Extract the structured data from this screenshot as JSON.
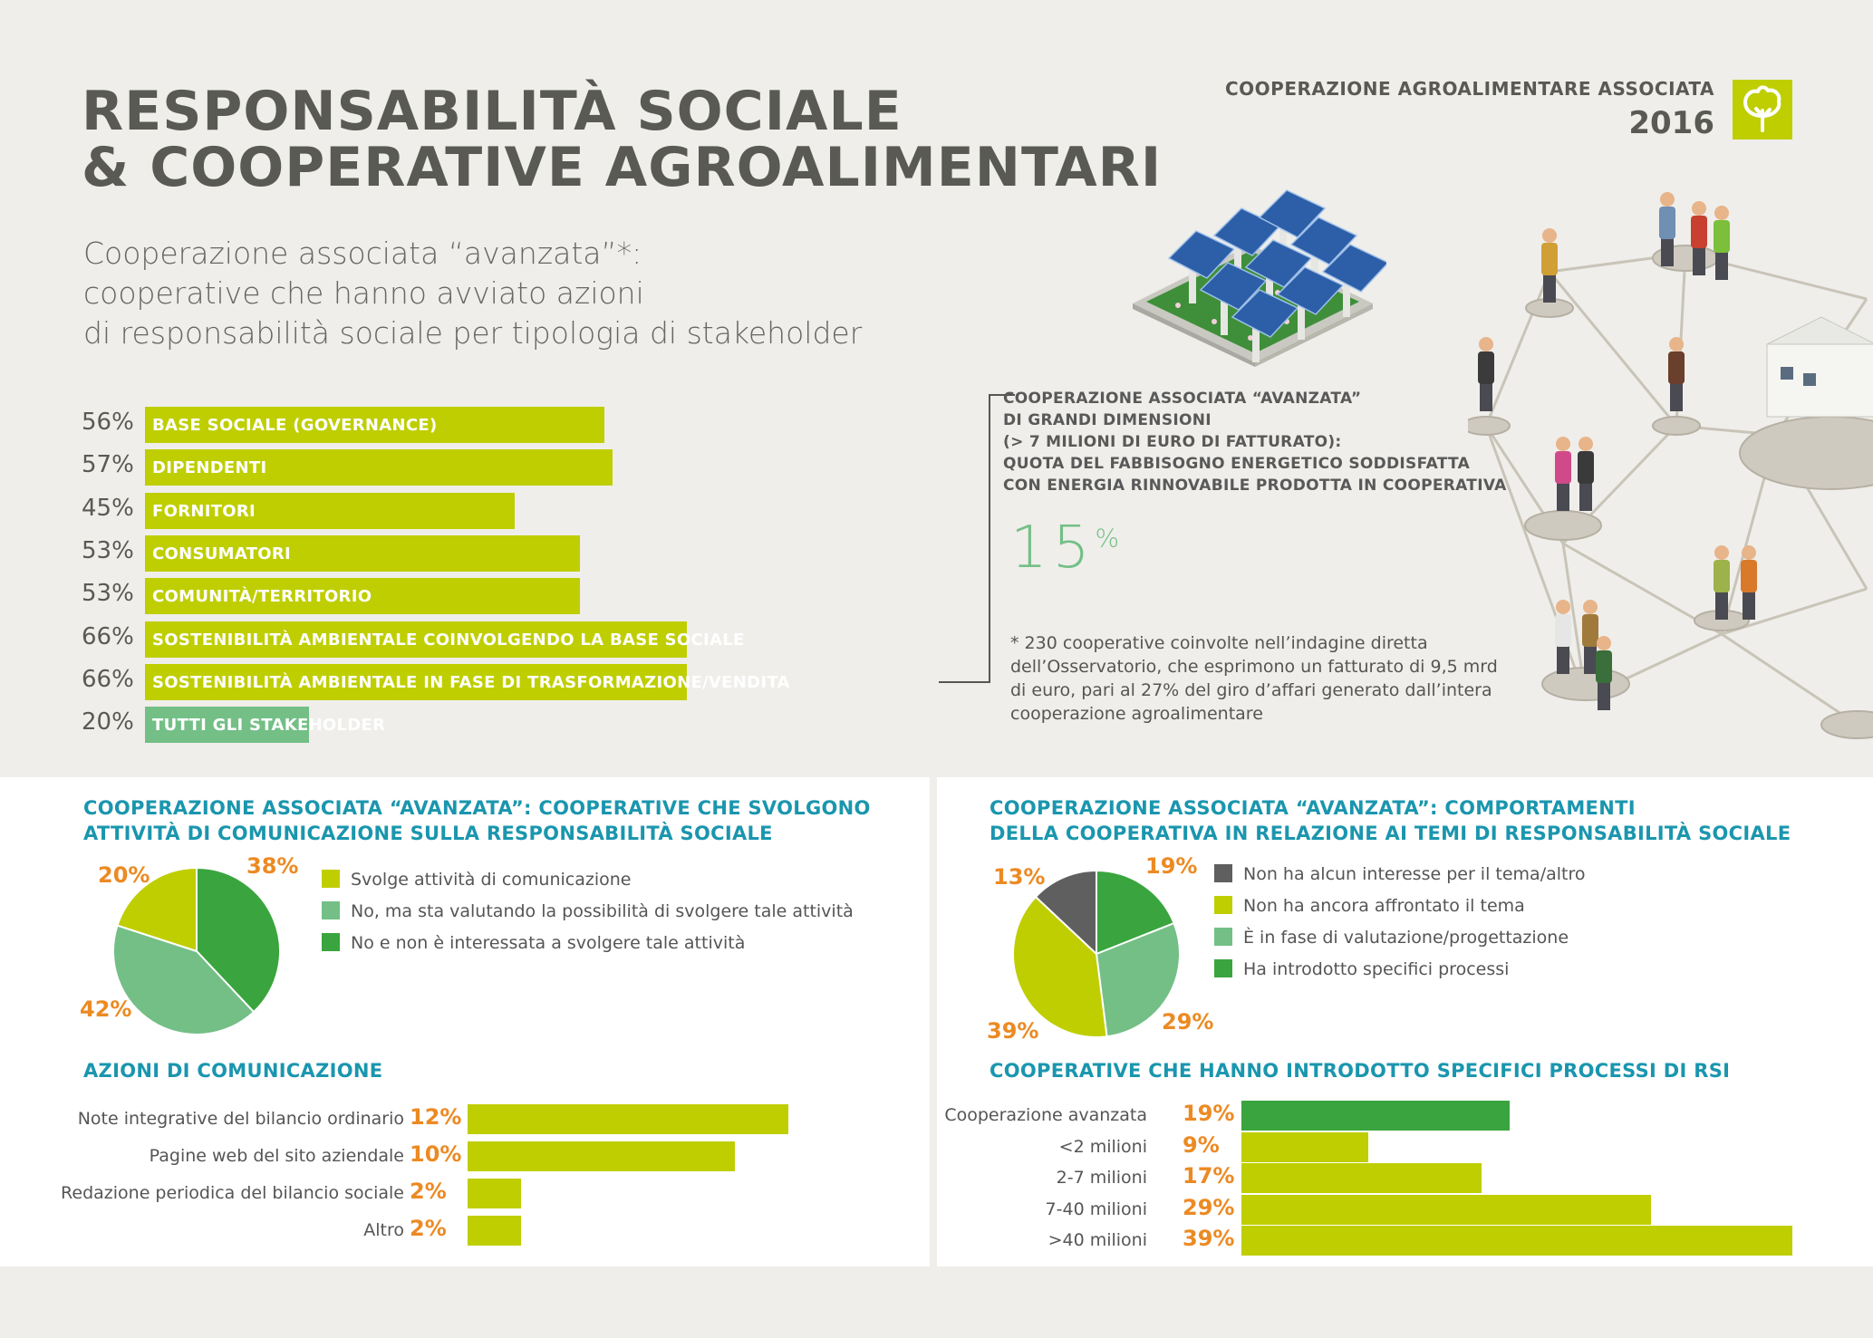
{
  "header": {
    "title_line1": "RESPONSABILITÀ SOCIALE",
    "title_line2": "& COOPERATIVE AGROALIMENTARI",
    "org_name": "COOPERAZIONE AGROALIMENTARE ASSOCIATA",
    "year": "2016",
    "logo_icon": "tree-logo-icon"
  },
  "subtitle": {
    "line1": "Cooperazione associata “avanzata”*:",
    "line2": "cooperative che hanno avviato azioni",
    "line3": "di responsabilità sociale per tipologia di stakeholder"
  },
  "stakeholder_chart": {
    "rows": [
      {
        "pct": "56%",
        "label": "BASE SOCIALE (GOVERNANCE)"
      },
      {
        "pct": "57%",
        "label": "DIPENDENTI"
      },
      {
        "pct": "45%",
        "label": "FORNITORI"
      },
      {
        "pct": "53%",
        "label": "CONSUMATORI"
      },
      {
        "pct": "53%",
        "label": "COMUNITÀ/TERRITORIO"
      },
      {
        "pct": "66%",
        "label": "SOSTENIBILITÀ AMBIENTALE COINVOLGENDO LA BASE SOCIALE"
      },
      {
        "pct": "66%",
        "label": "SOSTENIBILITÀ AMBIENTALE IN FASE DI TRASFORMAZIONE/VENDITA"
      },
      {
        "pct": "20%",
        "label": "TUTTI GLI STAKEHOLDER"
      }
    ]
  },
  "callout": {
    "line1": "COOPERAZIONE ASSOCIATA “AVANZATA”",
    "line2": "DI GRANDI DIMENSIONI",
    "line3": "(> 7 MILIONI DI EURO DI FATTURATO):",
    "line4": "QUOTA DEL FABBISOGNO ENERGETICO SODDISFATTA",
    "line5": "CON ENERGIA RINNOVABILE PRODOTTA IN COOPERATIVA",
    "value": "15",
    "unit": "%"
  },
  "footnote": {
    "line1": "* 230 cooperative coinvolte nell’indagine diretta",
    "line2": "dell’Osservatorio, che esprimono un fatturato di 9,5 mrd",
    "line3": "di euro, pari al 27% del giro d’affari generato dall’intera",
    "line4": "cooperazione agroalimentare"
  },
  "panel_left": {
    "title_line1": "COOPERAZIONE ASSOCIATA “AVANZATA”: COOPERATIVE CHE SVOLGONO",
    "title_line2": "ATTIVITÀ DI COMUNICAZIONE SULLA RESPONSABILITÀ SOCIALE",
    "legend": [
      "Svolge attività di comunicazione",
      "No, ma sta valutando la possibilità di svolgere tale attività",
      "No e non è interessata a svolgere tale attività"
    ],
    "pie_labels": [
      "20%",
      "42%",
      "38%"
    ],
    "sub_title": "AZIONI DI COMUNICAZIONE",
    "actions": [
      {
        "label": "Note integrative del bilancio ordinario",
        "pct": "12%"
      },
      {
        "label": "Pagine web del sito aziendale",
        "pct": "10%"
      },
      {
        "label": "Redazione periodica del bilancio sociale",
        "pct": "2%"
      },
      {
        "label": "Altro",
        "pct": "2%"
      }
    ]
  },
  "panel_right": {
    "title_line1": "COOPERAZIONE ASSOCIATA “AVANZATA”: COMPORTAMENTI",
    "title_line2": "DELLA COOPERATIVA IN RELAZIONE AI TEMI DI RESPONSABILITÀ SOCIALE",
    "legend": [
      "Non ha alcun interesse per il tema/altro",
      "Non ha ancora affrontato il tema",
      "È in fase di valutazione/progettazione",
      "Ha introdotto specifici processi"
    ],
    "pie_labels": [
      "13%",
      "39%",
      "29%",
      "19%"
    ],
    "sub_title": "COOPERATIVE CHE HANNO INTRODOTTO SPECIFICI PROCESSI DI RSI",
    "rsi": [
      {
        "label": "Cooperazione avanzata",
        "pct": "19%"
      },
      {
        "label": "<2 milioni",
        "pct": "9%"
      },
      {
        "label": "2-7 milioni",
        "pct": "17%"
      },
      {
        "label": "7-40 milioni",
        "pct": "29%"
      },
      {
        "label": ">40 milioni",
        "pct": "39%"
      }
    ]
  },
  "colors": {
    "lime": "#bfce00",
    "light_green": "#73bf86",
    "dark_green": "#3aa53e",
    "grey": "#5f5f5f",
    "orange": "#ec8a23",
    "teal": "#1a96ae"
  },
  "chart_data": [
    {
      "type": "bar",
      "orientation": "horizontal",
      "categories": [
        "BASE SOCIALE (GOVERNANCE)",
        "DIPENDENTI",
        "FORNITORI",
        "CONSUMATORI",
        "COMUNITÀ/TERRITORIO",
        "SOSTENIBILITÀ AMBIENTALE COINVOLGENDO LA BASE SOCIALE",
        "SOSTENIBILITÀ AMBIENTALE IN FASE DI TRASFORMAZIONE/VENDITA",
        "TUTTI GLI STAKEHOLDER"
      ],
      "values": [
        56,
        57,
        45,
        53,
        53,
        66,
        66,
        20
      ]
    },
    {
      "type": "pie",
      "title": "COOPERAZIONE ASSOCIATA “AVANZATA”: COOPERATIVE CHE SVOLGONO ATTIVITÀ DI COMUNICAZIONE SULLA RESPONSABILITÀ SOCIALE",
      "categories": [
        "Svolge attività di comunicazione",
        "No, ma sta valutando la possibilità di svolgere tale attività",
        "No e non è interessata a svolgere tale attività"
      ],
      "values": [
        20,
        42,
        38
      ]
    },
    {
      "type": "bar",
      "orientation": "horizontal",
      "title": "AZIONI DI COMUNICAZIONE",
      "categories": [
        "Note integrative del bilancio ordinario",
        "Pagine web del sito aziendale",
        "Redazione periodica del bilancio sociale",
        "Altro"
      ],
      "values": [
        12,
        10,
        2,
        2
      ]
    },
    {
      "type": "pie",
      "title": "COOPERAZIONE ASSOCIATA “AVANZATA”: COMPORTAMENTI DELLA COOPERATIVA IN RELAZIONE AI TEMI DI RESPONSABILITÀ SOCIALE",
      "categories": [
        "Non ha alcun interesse per il tema/altro",
        "Non ha ancora affrontato il tema",
        "È in fase di valutazione/progettazione",
        "Ha introdotto specifici processi"
      ],
      "values": [
        13,
        39,
        29,
        19
      ]
    },
    {
      "type": "bar",
      "orientation": "horizontal",
      "title": "COOPERATIVE CHE HANNO INTRODOTTO SPECIFICI PROCESSI DI RSI",
      "categories": [
        "Cooperazione avanzata",
        "<2 milioni",
        "2-7 milioni",
        "7-40 milioni",
        ">40 milioni"
      ],
      "values": [
        19,
        9,
        17,
        29,
        39
      ]
    }
  ]
}
